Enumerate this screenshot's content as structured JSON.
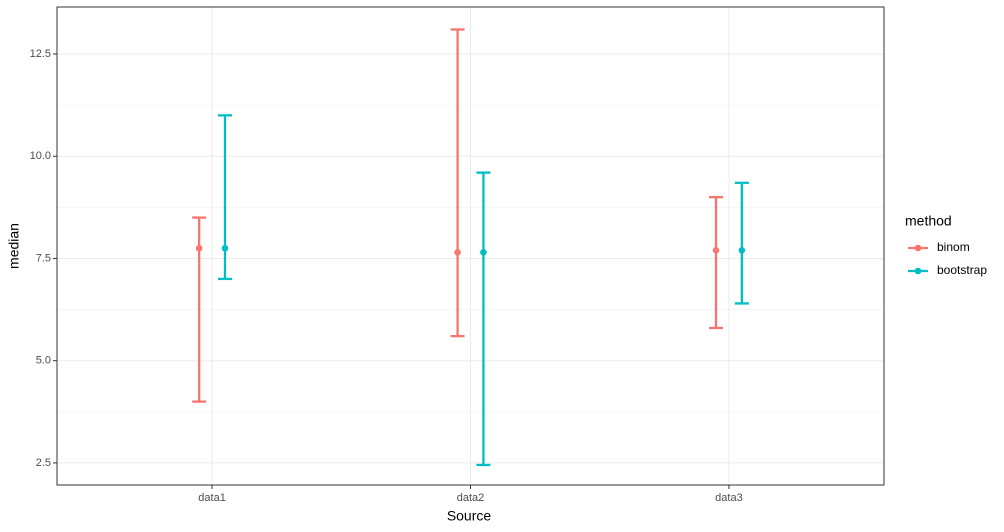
{
  "chart_data": {
    "type": "errorbar",
    "categories": [
      "data1",
      "data2",
      "data3"
    ],
    "x_label": "Source",
    "y_label": "median",
    "legend_title": "method",
    "series": [
      {
        "name": "binom",
        "color": "#F8766D",
        "values": [
          7.75,
          7.65,
          7.7
        ],
        "lower": [
          4.0,
          5.6,
          5.8
        ],
        "upper": [
          8.5,
          13.1,
          9.0
        ]
      },
      {
        "name": "bootstrap",
        "color": "#00BFC4",
        "values": [
          7.75,
          7.65,
          7.7
        ],
        "lower": [
          7.0,
          2.45,
          6.4
        ],
        "upper": [
          11.0,
          9.6,
          9.35
        ]
      }
    ],
    "ylim": [
      1.96,
      13.65
    ],
    "yticks": [
      2.5,
      {
        "value": 5,
        "label": "5.0"
      },
      7.5,
      {
        "value": 10,
        "label": "10.0"
      },
      12.5
    ],
    "grid": true
  }
}
